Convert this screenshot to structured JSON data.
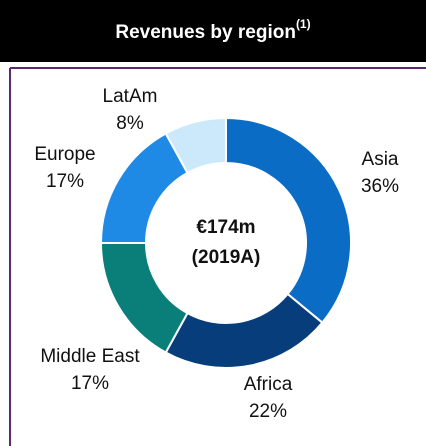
{
  "chart_data": {
    "type": "donut",
    "title": "Revenues by region",
    "title_note": "(1)",
    "center_label": [
      "€174m",
      "(2019A)"
    ],
    "categories": [
      "Asia",
      "Africa",
      "Middle East",
      "Europe",
      "LatAm"
    ],
    "values": [
      36,
      22,
      17,
      17,
      8
    ],
    "value_labels": [
      "36%",
      "22%",
      "17%",
      "17%",
      "8%"
    ],
    "colors": [
      "#0b6cc6",
      "#073d7a",
      "#0a7f7a",
      "#1f8ae6",
      "#cbe9fb"
    ]
  }
}
